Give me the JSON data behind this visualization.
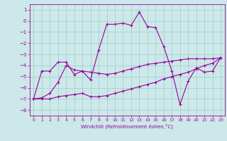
{
  "xlabel": "Windchill (Refroidissement éolien,°C)",
  "background_color": "#cce8e8",
  "line_color": "#990099",
  "xlim": [
    -0.5,
    23.5
  ],
  "ylim": [
    -8.5,
    1.5
  ],
  "yticks": [
    1,
    0,
    -1,
    -2,
    -3,
    -4,
    -5,
    -6,
    -7,
    -8
  ],
  "xticks": [
    0,
    1,
    2,
    3,
    4,
    5,
    6,
    7,
    8,
    9,
    10,
    11,
    12,
    13,
    14,
    15,
    16,
    17,
    18,
    19,
    20,
    21,
    22,
    23
  ],
  "series1": [
    [
      0,
      -7.0
    ],
    [
      1,
      -4.5
    ],
    [
      2,
      -4.5
    ],
    [
      3,
      -3.7
    ],
    [
      4,
      -3.7
    ],
    [
      5,
      -4.8
    ],
    [
      6,
      -4.5
    ],
    [
      7,
      -5.3
    ],
    [
      8,
      -2.6
    ],
    [
      9,
      -0.3
    ],
    [
      10,
      -0.3
    ],
    [
      11,
      -0.2
    ],
    [
      12,
      -0.4
    ],
    [
      13,
      0.8
    ],
    [
      14,
      -0.5
    ],
    [
      15,
      -0.6
    ],
    [
      16,
      -2.3
    ],
    [
      17,
      -4.5
    ],
    [
      18,
      -7.5
    ],
    [
      19,
      -5.4
    ],
    [
      20,
      -4.2
    ],
    [
      21,
      -4.6
    ],
    [
      22,
      -4.5
    ],
    [
      23,
      -3.3
    ]
  ],
  "series2": [
    [
      0,
      -7.0
    ],
    [
      1,
      -7.0
    ],
    [
      2,
      -7.0
    ],
    [
      3,
      -6.8
    ],
    [
      4,
      -6.7
    ],
    [
      5,
      -6.6
    ],
    [
      6,
      -6.5
    ],
    [
      7,
      -6.8
    ],
    [
      8,
      -6.8
    ],
    [
      9,
      -6.7
    ],
    [
      10,
      -6.5
    ],
    [
      11,
      -6.3
    ],
    [
      12,
      -6.1
    ],
    [
      13,
      -5.9
    ],
    [
      14,
      -5.7
    ],
    [
      15,
      -5.5
    ],
    [
      16,
      -5.2
    ],
    [
      17,
      -5.0
    ],
    [
      18,
      -4.8
    ],
    [
      19,
      -4.6
    ],
    [
      20,
      -4.3
    ],
    [
      21,
      -4.0
    ],
    [
      22,
      -3.8
    ],
    [
      23,
      -3.3
    ]
  ],
  "series3": [
    [
      0,
      -7.0
    ],
    [
      1,
      -6.9
    ],
    [
      2,
      -6.5
    ],
    [
      3,
      -5.5
    ],
    [
      4,
      -4.0
    ],
    [
      5,
      -4.4
    ],
    [
      6,
      -4.5
    ],
    [
      7,
      -4.6
    ],
    [
      8,
      -4.7
    ],
    [
      9,
      -4.8
    ],
    [
      10,
      -4.7
    ],
    [
      11,
      -4.5
    ],
    [
      12,
      -4.3
    ],
    [
      13,
      -4.1
    ],
    [
      14,
      -3.9
    ],
    [
      15,
      -3.8
    ],
    [
      16,
      -3.7
    ],
    [
      17,
      -3.6
    ],
    [
      18,
      -3.5
    ],
    [
      19,
      -3.4
    ],
    [
      20,
      -3.4
    ],
    [
      21,
      -3.4
    ],
    [
      22,
      -3.4
    ],
    [
      23,
      -3.3
    ]
  ]
}
